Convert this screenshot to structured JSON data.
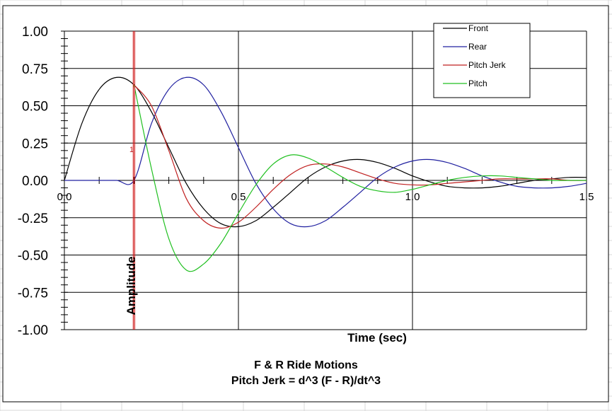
{
  "chart_data": {
    "type": "line",
    "title": "F & R Ride Motions",
    "subtitle": "Pitch Jerk = d^3 (F - R)/dt^3",
    "xlabel": "Time (sec)",
    "ylabel": "Amplitude",
    "xlim": [
      0,
      1.5
    ],
    "ylim": [
      -1.0,
      1.0
    ],
    "xticks": [
      0,
      0.5,
      1.0,
      1.5
    ],
    "xtick_labels": [
      "0.0",
      "0.5",
      "1.0",
      "1.5"
    ],
    "yticks": [
      1.0,
      0.75,
      0.5,
      0.25,
      0,
      -0.25,
      -0.5,
      -0.75,
      -1.0
    ],
    "ytick_labels": [
      "1.00",
      "0.75",
      "0.50",
      "0.25",
      "0.00",
      "-0.25",
      "-0.50",
      "-0.75",
      "-1.00"
    ],
    "grid": true,
    "legend_position": "top-right",
    "series": [
      {
        "name": "Front",
        "color": "#000000",
        "x": [
          0,
          0.05,
          0.1,
          0.15,
          0.2,
          0.25,
          0.3,
          0.35,
          0.4,
          0.45,
          0.5,
          0.55,
          0.6,
          0.65,
          0.7,
          0.75,
          0.8,
          0.85,
          0.9,
          0.95,
          1.0,
          1.05,
          1.1,
          1.15,
          1.2,
          1.25,
          1.3,
          1.35,
          1.4,
          1.45,
          1.5
        ],
        "values": [
          0,
          0.38,
          0.61,
          0.69,
          0.64,
          0.46,
          0.22,
          -0.02,
          -0.19,
          -0.29,
          -0.31,
          -0.27,
          -0.18,
          -0.08,
          0.02,
          0.09,
          0.13,
          0.14,
          0.12,
          0.08,
          0.03,
          -0.01,
          -0.04,
          -0.05,
          -0.05,
          -0.04,
          -0.02,
          0.0,
          0.01,
          0.02,
          0.02
        ]
      },
      {
        "name": "Rear",
        "color": "#2020a0",
        "x": [
          0,
          0.05,
          0.1,
          0.15,
          0.2,
          0.25,
          0.3,
          0.35,
          0.4,
          0.45,
          0.5,
          0.55,
          0.6,
          0.65,
          0.7,
          0.75,
          0.8,
          0.85,
          0.9,
          0.95,
          1.0,
          1.05,
          1.1,
          1.15,
          1.2,
          1.25,
          1.3,
          1.35,
          1.4,
          1.45,
          1.5
        ],
        "values": [
          0,
          0,
          0,
          0,
          0,
          0.38,
          0.61,
          0.69,
          0.64,
          0.46,
          0.22,
          -0.02,
          -0.19,
          -0.29,
          -0.31,
          -0.27,
          -0.18,
          -0.08,
          0.02,
          0.09,
          0.13,
          0.14,
          0.12,
          0.08,
          0.03,
          -0.01,
          -0.04,
          -0.05,
          -0.05,
          -0.04,
          -0.02
        ]
      },
      {
        "name": "Pitch Jerk",
        "color": "#c02020",
        "x": [
          0.2,
          0.25,
          0.3,
          0.35,
          0.4,
          0.45,
          0.5,
          0.55,
          0.6,
          0.65,
          0.7,
          0.75,
          0.8,
          0.85,
          0.9,
          0.95,
          1.0,
          1.05,
          1.1,
          1.15,
          1.2,
          1.25,
          1.3,
          1.35,
          1.4,
          1.45,
          1.5
        ],
        "values": [
          0.64,
          0.5,
          0.2,
          -0.12,
          -0.27,
          -0.32,
          -0.28,
          -0.18,
          -0.06,
          0.04,
          0.1,
          0.11,
          0.09,
          0.05,
          0.01,
          -0.02,
          -0.03,
          -0.03,
          -0.02,
          -0.01,
          0.0,
          0.01,
          0.01,
          0.01,
          0.01,
          0.0,
          0.0
        ]
      },
      {
        "name": "Pitch",
        "color": "#20c020",
        "x": [
          0.2,
          0.25,
          0.3,
          0.35,
          0.4,
          0.45,
          0.5,
          0.55,
          0.6,
          0.65,
          0.7,
          0.75,
          0.8,
          0.85,
          0.9,
          0.95,
          1.0,
          1.05,
          1.1,
          1.15,
          1.2,
          1.25,
          1.3,
          1.35,
          1.4,
          1.45,
          1.5
        ],
        "values": [
          0.64,
          0.08,
          -0.39,
          -0.6,
          -0.56,
          -0.42,
          -0.22,
          -0.03,
          0.11,
          0.17,
          0.15,
          0.09,
          0.02,
          -0.04,
          -0.07,
          -0.08,
          -0.06,
          -0.03,
          0.0,
          0.02,
          0.03,
          0.03,
          0.02,
          0.01,
          0.0,
          0.0,
          0.0
        ]
      }
    ],
    "annotations": [
      {
        "text": "1",
        "x": 0.195,
        "y": 0.19
      }
    ],
    "marker_line": {
      "x": 0.2,
      "color": "#d02020"
    }
  }
}
